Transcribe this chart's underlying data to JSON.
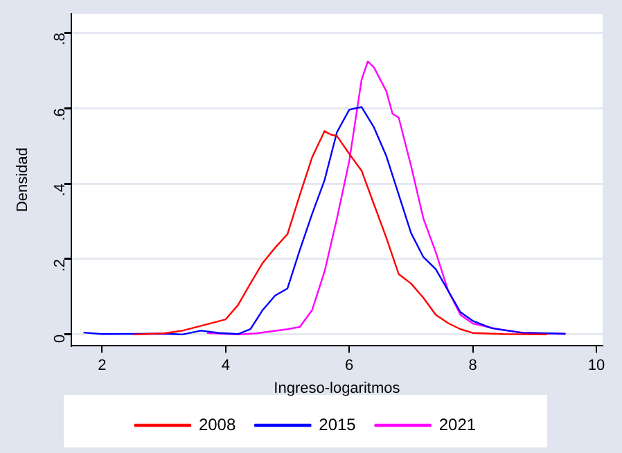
{
  "chart_data": {
    "type": "line",
    "xlabel": "Ingreso-logaritmos",
    "ylabel": "Densidad",
    "xlim": [
      1.5,
      10.1
    ],
    "xticks": [
      2,
      4,
      6,
      8,
      10
    ],
    "ylim": [
      -0.03,
      0.85
    ],
    "yticks": [
      0,
      {
        "value": 0.2,
        "label": ".2"
      },
      {
        "value": 0.4,
        "label": ".4"
      },
      {
        "value": 0.6,
        "label": ".6"
      },
      {
        "value": 0.8,
        "label": ".8"
      }
    ],
    "grid": "y",
    "legend": "bottom",
    "marker": "none",
    "line_style": "solid",
    "series": [
      {
        "name": "2008",
        "color": "#ff0000",
        "x": [
          2.5,
          3.0,
          3.3,
          3.7,
          4.0,
          4.2,
          4.4,
          4.6,
          4.8,
          5.0,
          5.2,
          5.4,
          5.6,
          5.7,
          5.8,
          6.0,
          6.2,
          6.4,
          6.6,
          6.8,
          7.0,
          7.2,
          7.4,
          7.6,
          7.8,
          8.0,
          8.5,
          9.2
        ],
        "values": [
          0,
          0.003,
          0.01,
          0.027,
          0.04,
          0.078,
          0.135,
          0.19,
          0.23,
          0.266,
          0.37,
          0.47,
          0.539,
          0.53,
          0.526,
          0.479,
          0.434,
          0.345,
          0.256,
          0.16,
          0.135,
          0.097,
          0.052,
          0.03,
          0.014,
          0.004,
          0.001,
          0
        ]
      },
      {
        "name": "2015",
        "color": "#0000ff",
        "x": [
          1.7,
          2.0,
          3.0,
          3.3,
          3.6,
          3.9,
          4.2,
          4.4,
          4.6,
          4.8,
          5.0,
          5.2,
          5.4,
          5.6,
          5.8,
          6.0,
          6.2,
          6.4,
          6.6,
          6.8,
          7.0,
          7.2,
          7.4,
          7.6,
          7.8,
          8.0,
          8.3,
          8.8,
          9.5
        ],
        "values": [
          0.005,
          0.001,
          0.002,
          0,
          0.01,
          0.004,
          0.001,
          0.014,
          0.065,
          0.103,
          0.122,
          0.224,
          0.32,
          0.409,
          0.536,
          0.596,
          0.603,
          0.549,
          0.473,
          0.371,
          0.269,
          0.205,
          0.173,
          0.116,
          0.059,
          0.036,
          0.017,
          0.004,
          0.002
        ]
      },
      {
        "name": "2021",
        "color": "#ff00ff",
        "x": [
          3.7,
          4.2,
          4.5,
          5.0,
          5.2,
          5.4,
          5.6,
          5.8,
          6.0,
          6.2,
          6.3,
          6.4,
          6.6,
          6.7,
          6.8,
          7.0,
          7.2,
          7.4,
          7.6,
          7.8,
          8.0,
          8.4,
          8.8,
          9.5
        ],
        "values": [
          0.004,
          0,
          0.003,
          0.014,
          0.02,
          0.065,
          0.167,
          0.307,
          0.46,
          0.676,
          0.724,
          0.708,
          0.645,
          0.585,
          0.575,
          0.447,
          0.307,
          0.218,
          0.116,
          0.052,
          0.029,
          0.014,
          0.005,
          0.001
        ]
      }
    ]
  }
}
